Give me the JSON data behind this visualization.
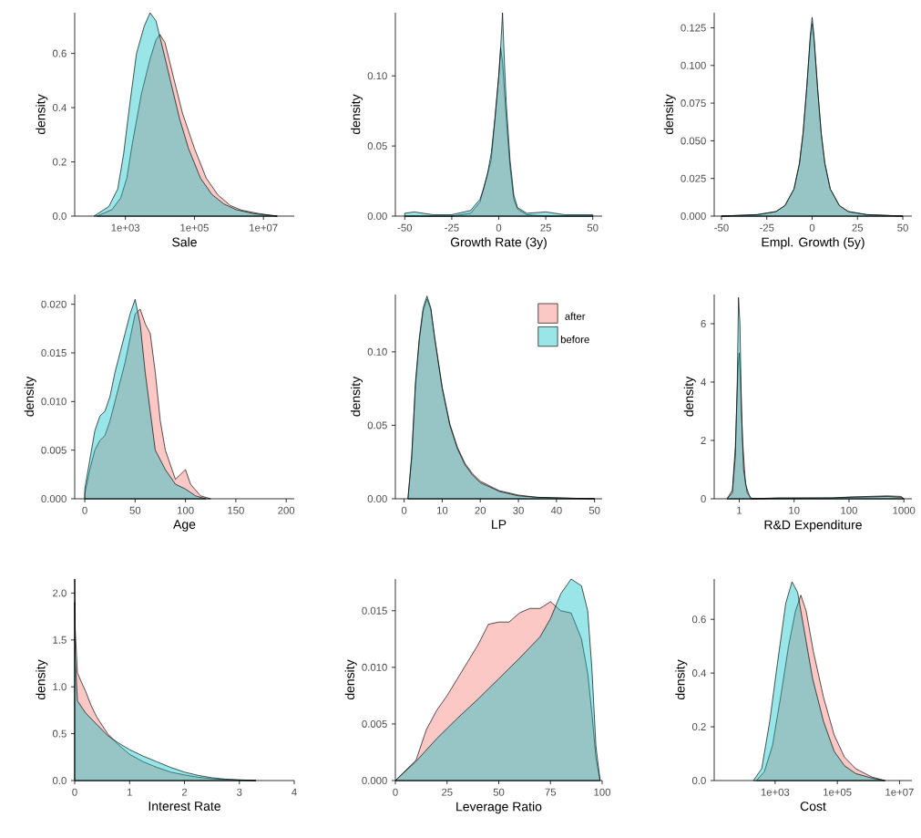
{
  "chart_data": [
    {
      "type": "area",
      "xlabel": "Sale",
      "ylabel": "density",
      "log": "x",
      "xlim": [
        34,
        78000000
      ],
      "xticks": [
        {
          "value": 1000,
          "label": "1e+03"
        },
        {
          "value": 100000,
          "label": "1e+05"
        },
        {
          "value": 10000000,
          "label": "1e+07"
        }
      ],
      "ylim": [
        0,
        0.75
      ],
      "yticks": [
        {
          "value": 0,
          "label": "0.0"
        },
        {
          "value": 0.2,
          "label": "0.2"
        },
        {
          "value": 0.4,
          "label": "0.4"
        },
        {
          "value": 0.6,
          "label": "0.6"
        }
      ],
      "series": [
        {
          "color": "#f8766d",
          "x": [
            150,
            410,
            730,
            1100,
            1600,
            2900,
            5200,
            7700,
            10000,
            14000,
            25000,
            45000,
            100000,
            220000,
            480000,
            1100000,
            2300000,
            7600000,
            25000000
          ],
          "values": [
            0,
            0.024,
            0.067,
            0.14,
            0.27,
            0.45,
            0.58,
            0.65,
            0.67,
            0.64,
            0.51,
            0.38,
            0.25,
            0.14,
            0.078,
            0.039,
            0.022,
            0.009,
            0
          ]
        },
        {
          "color": "#00bfc4",
          "x": [
            123,
            330,
            600,
            890,
            1300,
            2100,
            3500,
            5200,
            7700,
            11000,
            21000,
            37000,
            67000,
            150000,
            320000,
            710000,
            1600000,
            5100000,
            25000000
          ],
          "values": [
            0,
            0.035,
            0.1,
            0.23,
            0.4,
            0.6,
            0.7,
            0.75,
            0.72,
            0.64,
            0.49,
            0.36,
            0.25,
            0.14,
            0.08,
            0.045,
            0.024,
            0.009,
            0
          ]
        }
      ]
    },
    {
      "type": "area",
      "xlabel": "Growth Rate (3y)",
      "ylabel": "density",
      "xlim": [
        -55,
        55
      ],
      "xticks": [
        -50,
        -25,
        0,
        25,
        50
      ],
      "ylim": [
        0,
        0.145
      ],
      "yticks": [
        {
          "value": 0,
          "label": "0.00"
        },
        {
          "value": 0.05,
          "label": "0.05"
        },
        {
          "value": 0.1,
          "label": "0.10"
        }
      ],
      "series": [
        {
          "color": "#f8766d",
          "x": [
            -50,
            -25,
            -15,
            -10,
            -8,
            -6,
            -4,
            -2,
            0,
            1,
            2,
            3,
            4,
            6,
            8,
            10,
            15,
            25,
            50
          ],
          "values": [
            0,
            0,
            0.002,
            0.01,
            0.02,
            0.03,
            0.04,
            0.07,
            0.1,
            0.12,
            0.11,
            0.09,
            0.07,
            0.035,
            0.012,
            0.005,
            0.001,
            0,
            0
          ]
        },
        {
          "color": "#00bfc4",
          "x": [
            -50,
            -45,
            -35,
            -25,
            -15,
            -10,
            -8,
            -6,
            -4,
            -2,
            0,
            1,
            2,
            3,
            4,
            6,
            8,
            10,
            15,
            25,
            35,
            50
          ],
          "values": [
            0.002,
            0.003,
            0.001,
            0.001,
            0.004,
            0.012,
            0.02,
            0.03,
            0.045,
            0.07,
            0.1,
            0.12,
            0.145,
            0.11,
            0.08,
            0.04,
            0.015,
            0.006,
            0.002,
            0.003,
            0.001,
            0.001
          ]
        }
      ]
    },
    {
      "type": "area",
      "xlabel": "Empl. Growth (5y)",
      "ylabel": "density",
      "xlim": [
        -54,
        55
      ],
      "xticks": [
        -50,
        -25,
        0,
        25,
        50
      ],
      "ylim": [
        0,
        0.135
      ],
      "yticks": [
        {
          "value": 0,
          "label": "0.000"
        },
        {
          "value": 0.025,
          "label": "0.025"
        },
        {
          "value": 0.05,
          "label": "0.050"
        },
        {
          "value": 0.075,
          "label": "0.075"
        },
        {
          "value": 0.1,
          "label": "0.100"
        },
        {
          "value": 0.125,
          "label": "0.125"
        }
      ],
      "series": [
        {
          "color": "#f8766d",
          "x": [
            -50,
            -30,
            -20,
            -15,
            -10,
            -7,
            -5,
            -3,
            -1,
            0,
            1,
            3,
            5,
            7,
            10,
            15,
            20,
            30,
            50
          ],
          "values": [
            0,
            0.001,
            0.003,
            0.007,
            0.018,
            0.035,
            0.055,
            0.085,
            0.118,
            0.128,
            0.118,
            0.085,
            0.055,
            0.035,
            0.018,
            0.007,
            0.003,
            0.001,
            0
          ]
        },
        {
          "color": "#00bfc4",
          "x": [
            -50,
            -30,
            -20,
            -15,
            -10,
            -7,
            -5,
            -3,
            -1,
            0,
            1,
            3,
            5,
            7,
            10,
            15,
            20,
            30,
            50
          ],
          "values": [
            0,
            0.001,
            0.003,
            0.007,
            0.018,
            0.035,
            0.055,
            0.085,
            0.12,
            0.132,
            0.12,
            0.085,
            0.055,
            0.035,
            0.018,
            0.007,
            0.003,
            0.001,
            0
          ]
        }
      ]
    },
    {
      "type": "area",
      "xlabel": "Age",
      "ylabel": "density",
      "xlim": [
        -10,
        208
      ],
      "xticks": [
        0,
        50,
        100,
        150,
        200
      ],
      "ylim": [
        0,
        0.021
      ],
      "yticks": [
        {
          "value": 0,
          "label": "0.000"
        },
        {
          "value": 0.005,
          "label": "0.005"
        },
        {
          "value": 0.01,
          "label": "0.010"
        },
        {
          "value": 0.015,
          "label": "0.015"
        },
        {
          "value": 0.02,
          "label": "0.020"
        }
      ],
      "series": [
        {
          "color": "#f8766d",
          "x": [
            0,
            5,
            10,
            15,
            20,
            25,
            30,
            35,
            40,
            45,
            50,
            55,
            60,
            65,
            70,
            75,
            80,
            90,
            95,
            100,
            105,
            115,
            125
          ],
          "values": [
            0.0005,
            0.003,
            0.005,
            0.006,
            0.0065,
            0.008,
            0.01,
            0.012,
            0.014,
            0.0165,
            0.019,
            0.0195,
            0.018,
            0.017,
            0.013,
            0.008,
            0.005,
            0.002,
            0.0025,
            0.003,
            0.0015,
            0.0003,
            0
          ]
        },
        {
          "color": "#00bfc4",
          "x": [
            0,
            5,
            10,
            15,
            20,
            25,
            30,
            35,
            40,
            45,
            50,
            55,
            60,
            65,
            70,
            75,
            80,
            90,
            100,
            110,
            120
          ],
          "values": [
            0.001,
            0.004,
            0.007,
            0.0085,
            0.009,
            0.0105,
            0.013,
            0.015,
            0.017,
            0.019,
            0.0205,
            0.018,
            0.013,
            0.009,
            0.005,
            0.004,
            0.003,
            0.0015,
            0.001,
            0.0003,
            0
          ]
        }
      ]
    },
    {
      "type": "area",
      "xlabel": "LP",
      "ylabel": "density",
      "legend": "top right",
      "xlim": [
        -2.3,
        52
      ],
      "xticks": [
        0,
        10,
        20,
        30,
        40,
        50
      ],
      "ylim": [
        0,
        0.139
      ],
      "yticks": [
        {
          "value": 0,
          "label": "0.00"
        },
        {
          "value": 0.05,
          "label": "0.05"
        },
        {
          "value": 0.1,
          "label": "0.10"
        }
      ],
      "series": [
        {
          "name": "after",
          "color": "#f8766d",
          "x": [
            1,
            2,
            3,
            4,
            5,
            6,
            7,
            8,
            10,
            12,
            14,
            16,
            18,
            20,
            25,
            30,
            35,
            42,
            50
          ],
          "values": [
            0,
            0.028,
            0.078,
            0.108,
            0.128,
            0.136,
            0.129,
            0.11,
            0.076,
            0.051,
            0.035,
            0.024,
            0.017,
            0.012,
            0.0055,
            0.0025,
            0.001,
            0.0005,
            0
          ]
        },
        {
          "name": "before",
          "color": "#00bfc4",
          "x": [
            1,
            2,
            3,
            4,
            5,
            6,
            7,
            8,
            10,
            12,
            14,
            16,
            18,
            20,
            25,
            30,
            35,
            42,
            50
          ],
          "values": [
            0,
            0.03,
            0.08,
            0.11,
            0.13,
            0.138,
            0.13,
            0.11,
            0.075,
            0.05,
            0.034,
            0.023,
            0.016,
            0.011,
            0.005,
            0.002,
            0.001,
            0.0005,
            0
          ]
        }
      ]
    },
    {
      "type": "area",
      "xlabel": "R&D Expenditure",
      "ylabel": "density",
      "log": "x",
      "xlim": [
        0.35,
        1400
      ],
      "xticks": [
        1,
        10,
        100,
        1000
      ],
      "ylim": [
        0,
        7
      ],
      "yticks": [
        0,
        2,
        4,
        6
      ],
      "series": [
        {
          "color": "#f8766d",
          "x": [
            0.6,
            0.75,
            0.85,
            0.95,
            1.0,
            1.05,
            1.15,
            1.3,
            1.6,
            5,
            10,
            50,
            100,
            500,
            900,
            1000
          ],
          "values": [
            0,
            0.3,
            1.8,
            4.5,
            5,
            4.2,
            2,
            0.5,
            0,
            0.03,
            0.03,
            0.03,
            0.06,
            0.1,
            0.08,
            0
          ]
        },
        {
          "color": "#00bfc4",
          "x": [
            0.6,
            0.75,
            0.85,
            0.92,
            0.97,
            1.03,
            1.1,
            1.2,
            1.4,
            1.7,
            5,
            10,
            50,
            100,
            500,
            900,
            1000
          ],
          "values": [
            0,
            0.2,
            1.5,
            4,
            6.9,
            6,
            3,
            1,
            0.2,
            0,
            0.02,
            0.02,
            0.03,
            0.05,
            0.08,
            0.05,
            0
          ]
        }
      ]
    },
    {
      "type": "area",
      "xlabel": "Interest Rate",
      "ylabel": "density",
      "xlim": [
        0,
        4
      ],
      "xticks": [
        0,
        1,
        2,
        3,
        4
      ],
      "ylim": [
        0,
        2.15
      ],
      "yticks": [
        {
          "value": 0,
          "label": "0.0"
        },
        {
          "value": 0.5,
          "label": "0.5"
        },
        {
          "value": 1,
          "label": "1.0"
        },
        {
          "value": 1.5,
          "label": "1.5"
        },
        {
          "value": 2,
          "label": "2.0"
        }
      ],
      "series": [
        {
          "color": "#f8766d",
          "x": [
            0,
            0.01,
            0.05,
            0.1,
            0.2,
            0.3,
            0.4,
            0.6,
            0.8,
            1,
            1.25,
            1.5,
            1.75,
            2,
            2.25,
            2.5,
            2.75,
            3,
            3.3
          ],
          "values": [
            2.15,
            1.6,
            1.15,
            1.08,
            0.95,
            0.8,
            0.68,
            0.5,
            0.38,
            0.28,
            0.2,
            0.14,
            0.09,
            0.06,
            0.035,
            0.02,
            0.01,
            0.005,
            0
          ]
        },
        {
          "color": "#00bfc4",
          "x": [
            0,
            0.01,
            0.05,
            0.2,
            0.4,
            0.6,
            0.8,
            1,
            1.25,
            1.5,
            1.75,
            2,
            2.25,
            2.5,
            2.75,
            3,
            3.3
          ],
          "values": [
            1.9,
            1.3,
            0.85,
            0.72,
            0.6,
            0.48,
            0.4,
            0.33,
            0.26,
            0.2,
            0.14,
            0.09,
            0.055,
            0.03,
            0.015,
            0.008,
            0
          ]
        }
      ]
    },
    {
      "type": "area",
      "xlabel": "Leverage Ratio",
      "ylabel": "density",
      "xlim": [
        0,
        100
      ],
      "xticks": [
        0,
        25,
        50,
        75,
        100
      ],
      "ylim": [
        0,
        0.0178
      ],
      "yticks": [
        {
          "value": 0,
          "label": "0.000"
        },
        {
          "value": 0.005,
          "label": "0.005"
        },
        {
          "value": 0.01,
          "label": "0.010"
        },
        {
          "value": 0.015,
          "label": "0.015"
        }
      ],
      "series": [
        {
          "color": "#f8766d",
          "x": [
            0,
            10,
            15,
            20,
            25,
            30,
            35,
            40,
            45,
            50,
            55,
            60,
            65,
            70,
            75,
            80,
            85,
            90,
            93,
            95,
            97,
            99
          ],
          "values": [
            0,
            0.0018,
            0.0045,
            0.0062,
            0.0075,
            0.009,
            0.0105,
            0.012,
            0.0138,
            0.014,
            0.014,
            0.0148,
            0.0152,
            0.0152,
            0.0158,
            0.015,
            0.0148,
            0.0125,
            0.0095,
            0.006,
            0.002,
            0
          ]
        },
        {
          "color": "#00bfc4",
          "x": [
            0,
            10,
            20,
            30,
            40,
            50,
            60,
            70,
            75,
            80,
            85,
            90,
            93,
            95,
            97,
            99
          ],
          "values": [
            0,
            0.0017,
            0.0037,
            0.0055,
            0.0072,
            0.009,
            0.0108,
            0.0127,
            0.0143,
            0.0165,
            0.0178,
            0.0172,
            0.015,
            0.01,
            0.003,
            0
          ]
        }
      ]
    },
    {
      "type": "area",
      "xlabel": "Cost",
      "ylabel": "density",
      "log": "x",
      "xlim": [
        11,
        25000000
      ],
      "xticks": [
        {
          "value": 1000,
          "label": "1e+03"
        },
        {
          "value": 100000,
          "label": "1e+05"
        },
        {
          "value": 10000000,
          "label": "1e+07"
        }
      ],
      "ylim": [
        0,
        0.75
      ],
      "yticks": [
        {
          "value": 0,
          "label": "0.0"
        },
        {
          "value": 0.2,
          "label": "0.2"
        },
        {
          "value": 0.4,
          "label": "0.4"
        },
        {
          "value": 0.6,
          "label": "0.6"
        }
      ],
      "series": [
        {
          "color": "#f8766d",
          "x": [
            250,
            450,
            820,
            1500,
            2700,
            4500,
            6700,
            10000,
            17000,
            36000,
            79000,
            170000,
            390000,
            1300000,
            3400000
          ],
          "values": [
            0,
            0.033,
            0.13,
            0.31,
            0.5,
            0.63,
            0.69,
            0.63,
            0.48,
            0.31,
            0.17,
            0.087,
            0.044,
            0.013,
            0
          ]
        },
        {
          "color": "#00bfc4",
          "x": [
            200,
            370,
            670,
            1200,
            2200,
            3500,
            5300,
            8900,
            16000,
            36000,
            79000,
            170000,
            390000,
            1300000,
            3400000
          ],
          "values": [
            0,
            0.044,
            0.22,
            0.44,
            0.66,
            0.74,
            0.7,
            0.55,
            0.38,
            0.22,
            0.109,
            0.055,
            0.026,
            0.009,
            0
          ]
        }
      ]
    }
  ]
}
